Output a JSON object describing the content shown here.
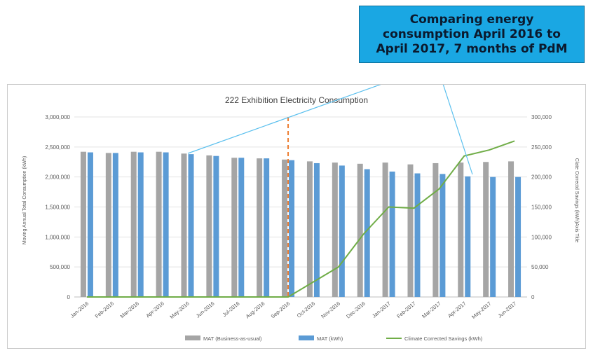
{
  "callout": {
    "text": "Comparing energy consumption April 2016 to April 2017, 7 months of PdM"
  },
  "chart_data": {
    "type": "bar",
    "title": "222 Exhibition Electricity Consumption",
    "ylabel_left": "Moving Annual Total Consumption (kWh)",
    "ylabel_right": "Clate Correctd Savings (kWh)Axis Title",
    "ylim_left": [
      0,
      3000000
    ],
    "ylim_right": [
      0,
      300000
    ],
    "y_ticks_left": [
      "0",
      "500,000",
      "1,000,000",
      "1,500,000",
      "2,000,000",
      "2,500,000",
      "3,000,000"
    ],
    "y_ticks_right": [
      "0",
      "50,000",
      "100,000",
      "150,000",
      "200,000",
      "250,000",
      "300,000"
    ],
    "categories": [
      "Jan-2016",
      "Feb-2016",
      "Mar-2016",
      "Apr-2016",
      "May-2016",
      "Jun-2016",
      "Jul-2016",
      "Aug-2016",
      "Sep-2016",
      "Oct-2016",
      "Nov-2016",
      "Dec-2016",
      "Jan-2017",
      "Feb-2017",
      "Mar-2017",
      "Apr-2017",
      "May-2017",
      "Jun-2017"
    ],
    "series": [
      {
        "name": "MAT (Business-as-usual)",
        "type": "bar",
        "axis": "left",
        "color": "#a5a5a5",
        "values": [
          2420000,
          2400000,
          2420000,
          2420000,
          2390000,
          2360000,
          2320000,
          2310000,
          2290000,
          2260000,
          2240000,
          2220000,
          2240000,
          2210000,
          2230000,
          2240000,
          2250000,
          2260000
        ]
      },
      {
        "name": "MAT (kWh)",
        "type": "bar",
        "axis": "left",
        "color": "#5b9bd5",
        "values": [
          2410000,
          2400000,
          2410000,
          2410000,
          2380000,
          2350000,
          2320000,
          2310000,
          2280000,
          2230000,
          2190000,
          2130000,
          2090000,
          2060000,
          2050000,
          2010000,
          2000000,
          2000000
        ]
      },
      {
        "name": "Climate Corrected Savings (kWh)",
        "type": "line",
        "axis": "right",
        "color": "#70ad47",
        "values": [
          0,
          0,
          0,
          0,
          0,
          0,
          0,
          0,
          0,
          25000,
          50000,
          105000,
          150000,
          148000,
          180000,
          235000,
          245000,
          260000
        ]
      }
    ],
    "marker_line": {
      "category": "Sep-2016",
      "color": "#ed7d31",
      "style": "dashed"
    },
    "legend_position": "bottom",
    "grid": true
  }
}
